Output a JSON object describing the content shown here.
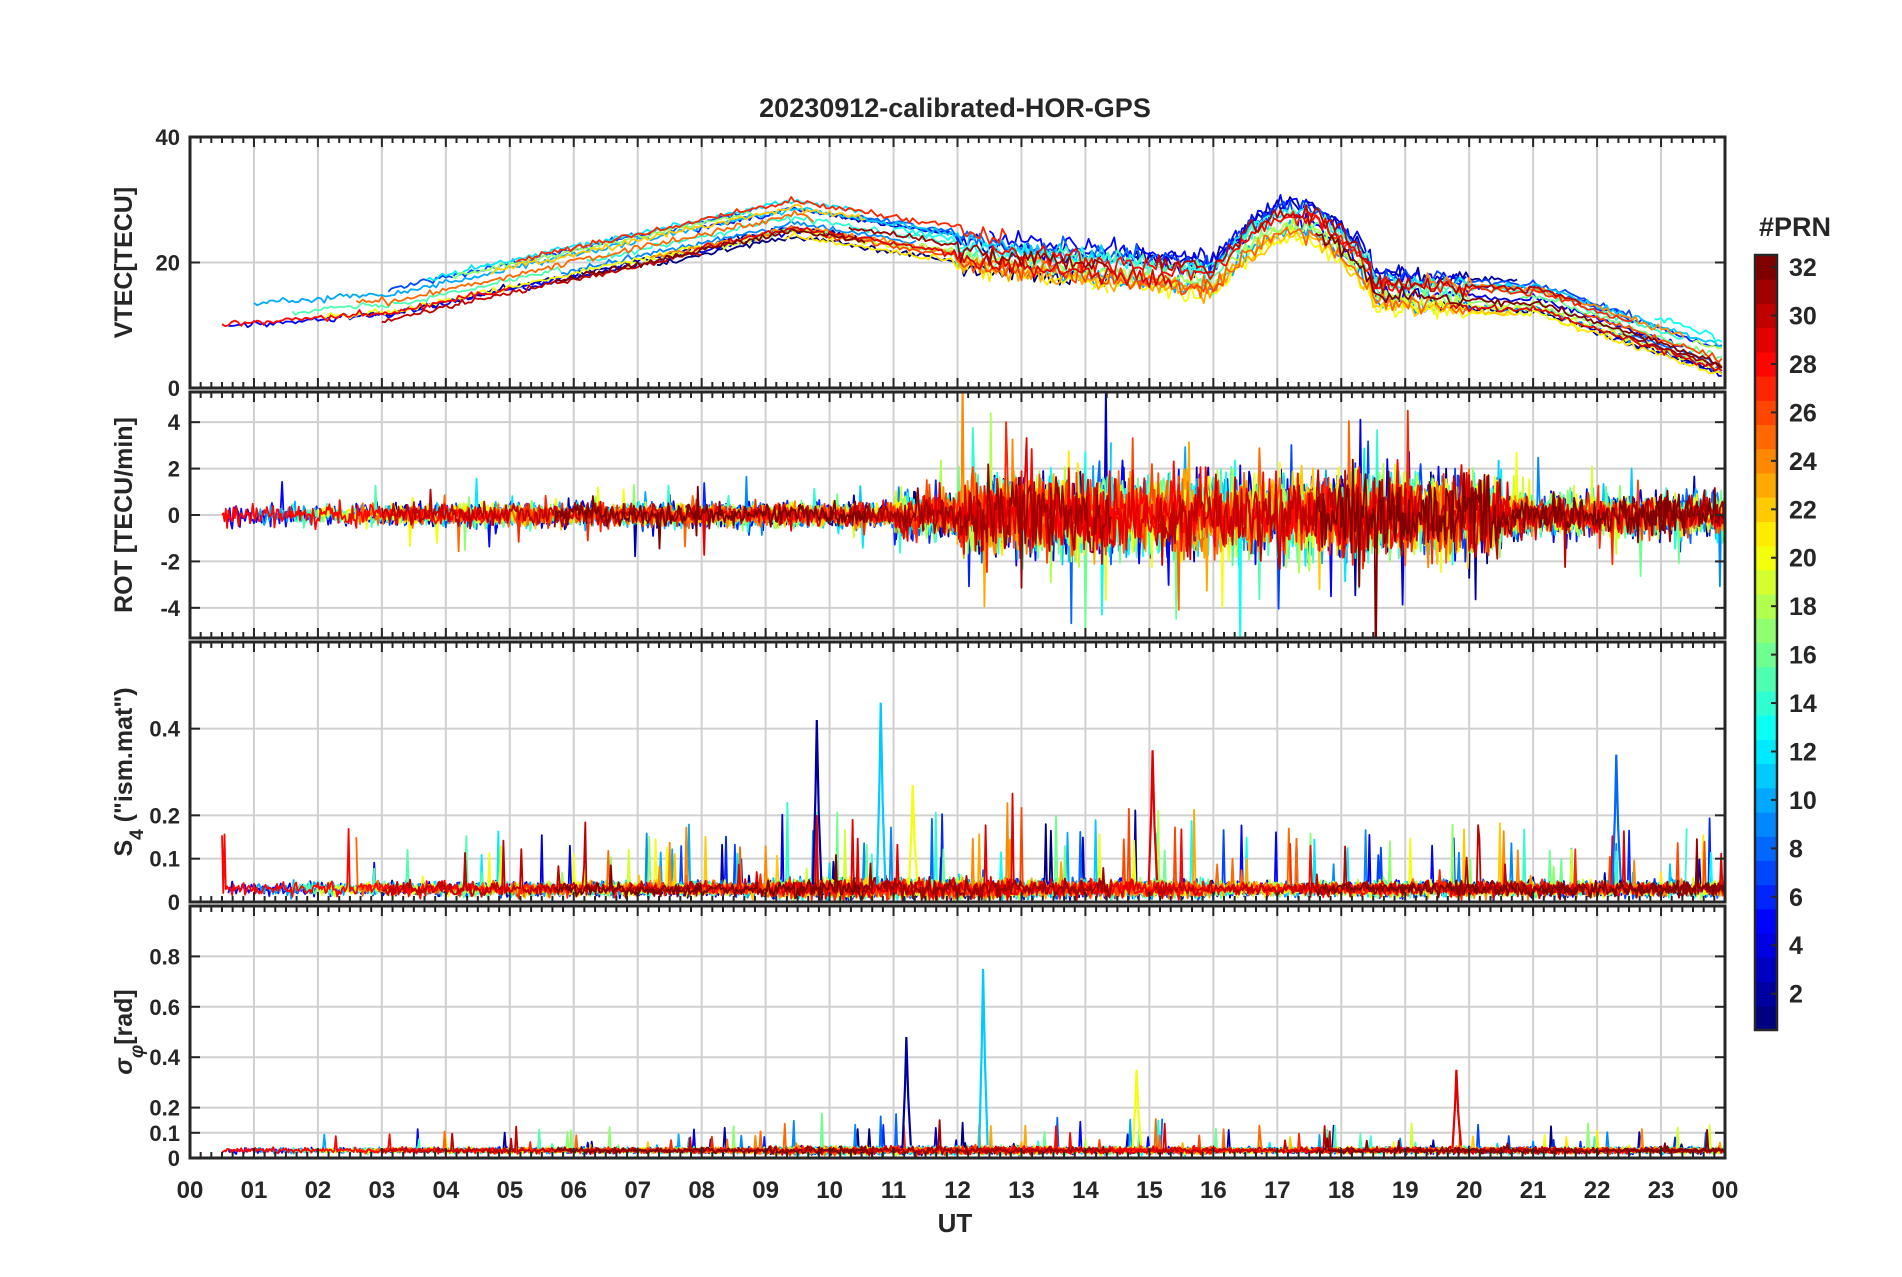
{
  "chart_data": {
    "type": "line",
    "title": "20230912-calibrated-HOR-GPS",
    "xlabel": "UT",
    "x_tick_labels": [
      "00",
      "01",
      "02",
      "03",
      "04",
      "05",
      "06",
      "07",
      "08",
      "09",
      "10",
      "11",
      "12",
      "13",
      "14",
      "15",
      "16",
      "17",
      "18",
      "19",
      "20",
      "21",
      "22",
      "23",
      "00"
    ],
    "xlim": [
      0,
      24
    ],
    "grid": true,
    "colorbar": {
      "title": "#PRN",
      "range": [
        1,
        32
      ],
      "tick_labels": [
        "2",
        "4",
        "6",
        "8",
        "10",
        "12",
        "14",
        "16",
        "18",
        "20",
        "22",
        "24",
        "26",
        "28",
        "30",
        "32"
      ],
      "ticks": [
        2,
        4,
        6,
        8,
        10,
        12,
        14,
        16,
        18,
        20,
        22,
        24,
        26,
        28,
        30,
        32
      ],
      "colormap": "jet",
      "levels": 32,
      "placement": "right"
    },
    "panels": [
      {
        "id": "vtec",
        "ylabel": "VTEC[TECU]",
        "ylim": [
          0,
          40
        ],
        "ticks": [
          0,
          20,
          40
        ],
        "tick_labels": [
          "0",
          "20",
          "40"
        ],
        "series_description": "Daily VTEC arcs per PRN, about 8-15 TECU at night rising to about 20-30 TECU during daytime, peaking near 16-18 UT, decaying to about 5 TECU by 24 UT"
      },
      {
        "id": "rot",
        "ylabel": "ROT [TECU/min]",
        "ylim": [
          -5.3,
          5.3
        ],
        "ticks": [
          -4,
          -2,
          0,
          2,
          4
        ],
        "tick_labels": [
          "-4",
          "-2",
          "0",
          "2",
          "4"
        ],
        "series_description": "Rate of TEC, near 0 with amplitude about 1 before 11 UT, strong fluctuations up to about +/-5 between 12 and 20 UT"
      },
      {
        "id": "s4",
        "ylabel_main": "S",
        "ylabel_sub": "4",
        "ylabel_rest": " (\"ism.mat\")",
        "ylim": [
          0,
          0.6
        ],
        "ticks": [
          0,
          0.1,
          0.2,
          0.4
        ],
        "tick_labels": [
          "0",
          "0.1",
          "0.2",
          "0.4"
        ],
        "series_description": "Amplitude scintillation index, background 0.02-0.08 with bursts; maxima about 0.45 near 11 UT and 0.42 near 09.8 UT"
      },
      {
        "id": "sigma",
        "ylabel_main": "σ",
        "ylabel_sub": "φ",
        "ylabel_rest": "[rad]",
        "ylim": [
          0,
          1.0
        ],
        "ticks": [
          0,
          0.1,
          0.2,
          0.4,
          0.6,
          0.8
        ],
        "tick_labels": [
          "0",
          "0.1",
          "0.2",
          "0.4",
          "0.6",
          "0.8"
        ],
        "series_description": "Phase scintillation index, background 0.02-0.06, spike about 0.75 at 12.4 UT, about 0.48 near 11.2 UT, about 0.35 near 19.8 UT"
      }
    ],
    "peaks": {
      "s4": [
        {
          "x": 9.8,
          "y": 0.42
        },
        {
          "x": 10.8,
          "y": 0.46
        },
        {
          "x": 11.3,
          "y": 0.27
        },
        {
          "x": 15.05,
          "y": 0.35
        },
        {
          "x": 22.3,
          "y": 0.34
        }
      ],
      "sigma": [
        {
          "x": 11.2,
          "y": 0.48
        },
        {
          "x": 12.4,
          "y": 0.75
        },
        {
          "x": 14.8,
          "y": 0.35
        },
        {
          "x": 19.8,
          "y": 0.35
        }
      ]
    }
  }
}
